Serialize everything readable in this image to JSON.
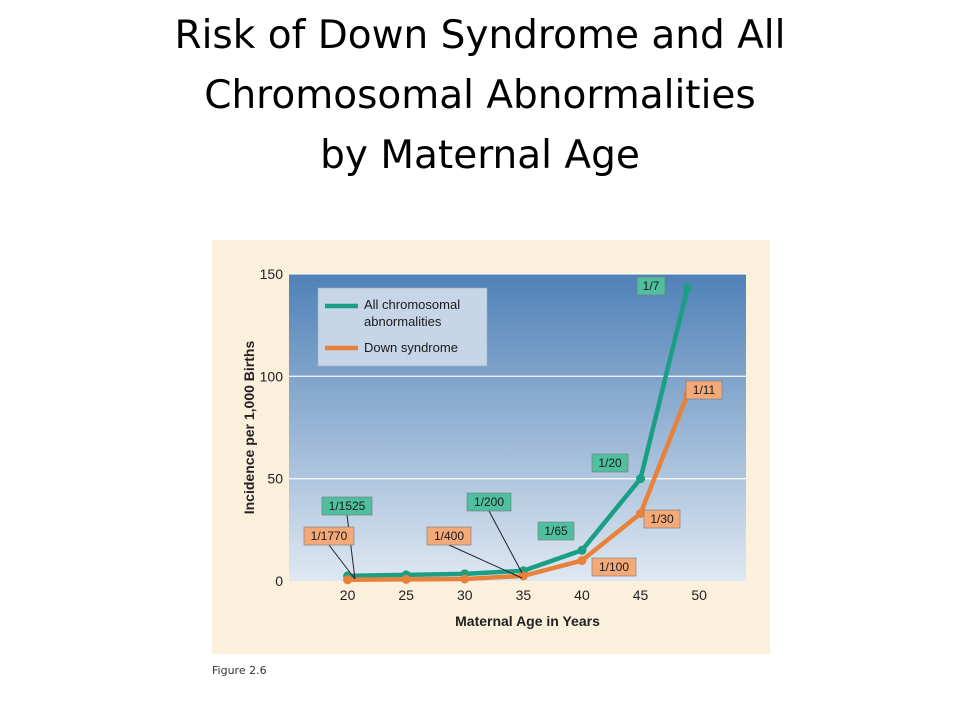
{
  "slide": {
    "title_lines": [
      "Risk of Down Syndrome and All",
      "Chromosomal Abnormalities",
      "by Maternal Age"
    ],
    "caption": "Figure 2.6"
  },
  "chart_data": {
    "type": "line",
    "x": [
      20,
      25,
      30,
      35,
      40,
      45,
      49
    ],
    "xlabel": "Maternal Age in Years",
    "ylabel": "Incidence per 1,000 Births",
    "xticks": [
      20,
      25,
      30,
      35,
      40,
      45,
      50
    ],
    "yticks": [
      0,
      50,
      100,
      150
    ],
    "xlim": [
      15,
      54
    ],
    "ylim": [
      0,
      150
    ],
    "grid": "horizontal",
    "legend_position": "top-left",
    "series": [
      {
        "name": "All chromosomal abnormalities",
        "name_lines": [
          "All chromosomal",
          "abnormalities"
        ],
        "color": "#1a9e84",
        "values": [
          2.5,
          3,
          3.5,
          5,
          15,
          50,
          143
        ]
      },
      {
        "name": "Down syndrome",
        "name_lines": [
          "Down syndrome"
        ],
        "color": "#e8823a",
        "values": [
          0.6,
          0.8,
          1,
          2.5,
          10,
          33,
          91
        ]
      }
    ],
    "annotations": [
      {
        "text": "1/1525",
        "series": 0
      },
      {
        "text": "1/200",
        "series": 0
      },
      {
        "text": "1/65",
        "series": 0
      },
      {
        "text": "1/20",
        "series": 0
      },
      {
        "text": "1/7",
        "series": 0
      },
      {
        "text": "1/1770",
        "series": 1
      },
      {
        "text": "1/400",
        "series": 1
      },
      {
        "text": "1/100",
        "series": 1
      },
      {
        "text": "1/30",
        "series": 1
      },
      {
        "text": "1/11",
        "series": 1
      }
    ],
    "colors": {
      "panel_bg": "#fbf0dc",
      "plot_top": "#4f81b7",
      "plot_bottom": "#dfe8f2",
      "teal_label_bg": "#4fbf9f",
      "orange_label_bg": "#f3a978"
    }
  }
}
